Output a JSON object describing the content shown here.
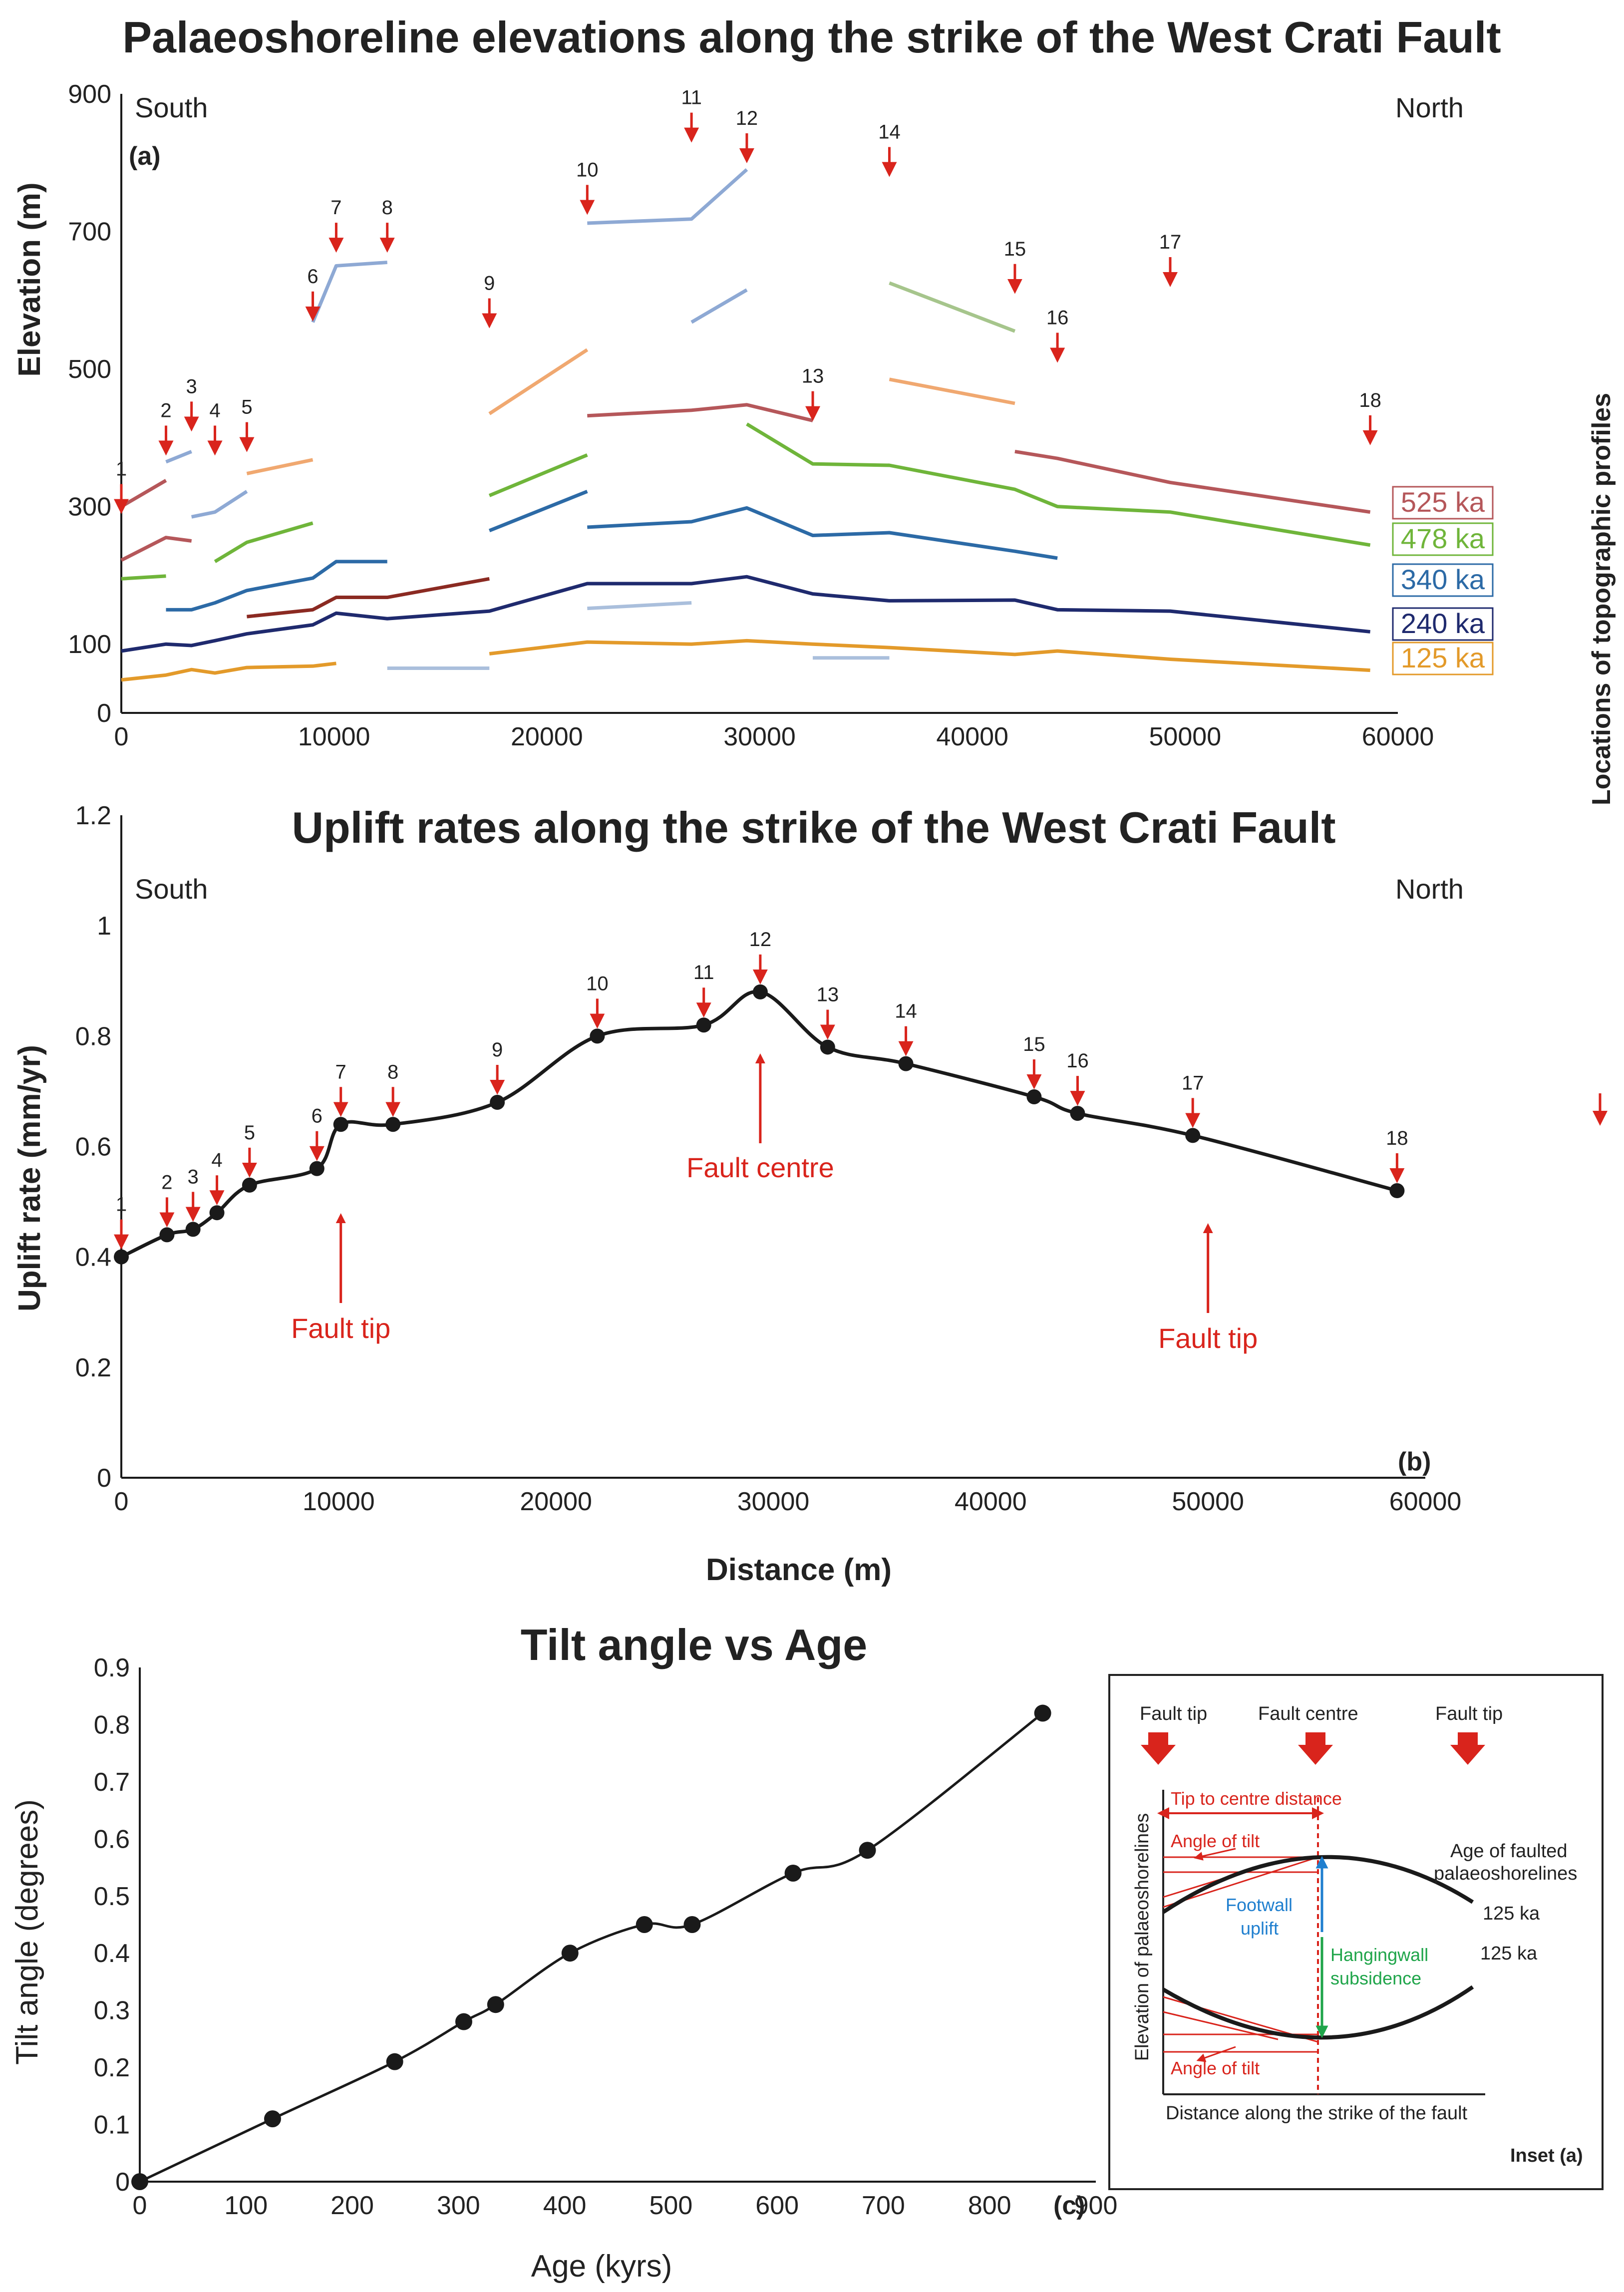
{
  "chart_data": [
    {
      "type": "line",
      "panel": "(a)",
      "title": "Palaeoshoreline elevations along the strike of the West Crati Fault",
      "xlabel": "",
      "ylabel": "Elevation (m)",
      "xlim": [
        0,
        60000
      ],
      "ylim": [
        0,
        900
      ],
      "xticks": [
        "0",
        "10000",
        "20000",
        "30000",
        "40000",
        "50000",
        "60000"
      ],
      "yticks": [
        "0",
        "100",
        "300",
        "500",
        "700",
        "900"
      ],
      "direction_labels": [
        "South",
        "North"
      ],
      "legend": [
        {
          "name": "525 ka",
          "color": "#b5575a"
        },
        {
          "name": "478 ka",
          "color": "#6fb53a"
        },
        {
          "name": "340 ka",
          "color": "#2c6aa6"
        },
        {
          "name": "240 ka",
          "color": "#1f2a6e"
        },
        {
          "name": "125 ka",
          "color": "#e39a2a"
        }
      ],
      "profile_markers": [
        {
          "label": "1",
          "x": 0,
          "y": 300
        },
        {
          "label": "2",
          "x": 2100,
          "y": 385
        },
        {
          "label": "3",
          "x": 3300,
          "y": 420
        },
        {
          "label": "4",
          "x": 4400,
          "y": 385
        },
        {
          "label": "5",
          "x": 5900,
          "y": 390
        },
        {
          "label": "6",
          "x": 9000,
          "y": 580
        },
        {
          "label": "7",
          "x": 10100,
          "y": 680
        },
        {
          "label": "8",
          "x": 12500,
          "y": 680
        },
        {
          "label": "9",
          "x": 17300,
          "y": 570
        },
        {
          "label": "10",
          "x": 21900,
          "y": 735
        },
        {
          "label": "11",
          "x": 26800,
          "y": 840
        },
        {
          "label": "12",
          "x": 29400,
          "y": 810
        },
        {
          "label": "13",
          "x": 32500,
          "y": 435
        },
        {
          "label": "14",
          "x": 36100,
          "y": 790
        },
        {
          "label": "15",
          "x": 42000,
          "y": 620
        },
        {
          "label": "16",
          "x": 44000,
          "y": 520
        },
        {
          "label": "17",
          "x": 49300,
          "y": 630
        },
        {
          "label": "18",
          "x": 58700,
          "y": 400
        }
      ],
      "series": [
        {
          "name": "125 ka",
          "color": "#e39a2a",
          "segments": [
            [
              [
                0,
                48
              ],
              [
                2100,
                55
              ],
              [
                3300,
                63
              ],
              [
                4400,
                58
              ],
              [
                5900,
                66
              ],
              [
                9000,
                68
              ],
              [
                10100,
                72
              ]
            ],
            [
              [
                17300,
                86
              ],
              [
                21900,
                103
              ],
              [
                26800,
                100
              ],
              [
                29400,
                105
              ],
              [
                32500,
                100
              ],
              [
                36100,
                95
              ],
              [
                42000,
                85
              ],
              [
                44000,
                90
              ],
              [
                49300,
                78
              ],
              [
                58700,
                62
              ]
            ]
          ]
        },
        {
          "name": "240 ka",
          "color": "#1f2a6e",
          "segments": [
            [
              [
                0,
                90
              ],
              [
                2100,
                100
              ],
              [
                3300,
                98
              ],
              [
                4400,
                105
              ],
              [
                5900,
                115
              ],
              [
                9000,
                128
              ],
              [
                10100,
                145
              ],
              [
                12500,
                137
              ],
              [
                17300,
                148
              ],
              [
                21900,
                188
              ],
              [
                26800,
                188
              ],
              [
                29400,
                198
              ],
              [
                32500,
                173
              ],
              [
                36100,
                163
              ],
              [
                42000,
                164
              ],
              [
                44000,
                150
              ],
              [
                49300,
                148
              ],
              [
                58700,
                118
              ]
            ]
          ]
        },
        {
          "name": "340 ka",
          "color": "#2c6aa6",
          "segments": [
            [
              [
                2100,
                150
              ],
              [
                3300,
                150
              ],
              [
                4400,
                160
              ],
              [
                5900,
                178
              ],
              [
                9000,
                196
              ],
              [
                10100,
                220
              ],
              [
                12500,
                220
              ]
            ],
            [
              [
                17300,
                265
              ],
              [
                21900,
                322
              ]
            ],
            [
              [
                21900,
                270
              ],
              [
                26800,
                278
              ],
              [
                29400,
                298
              ],
              [
                32500,
                258
              ],
              [
                36100,
                262
              ],
              [
                42000,
                235
              ],
              [
                44000,
                225
              ]
            ]
          ]
        },
        {
          "name": "478 ka",
          "color": "#6fb53a",
          "segments": [
            [
              [
                0,
                195
              ],
              [
                2100,
                199
              ]
            ],
            [
              [
                4400,
                220
              ],
              [
                5900,
                248
              ],
              [
                9000,
                276
              ]
            ],
            [
              [
                17300,
                316
              ],
              [
                21900,
                375
              ]
            ],
            [
              [
                29400,
                420
              ],
              [
                32500,
                362
              ],
              [
                36100,
                360
              ],
              [
                42000,
                325
              ],
              [
                44000,
                300
              ],
              [
                49300,
                292
              ],
              [
                58700,
                244
              ]
            ]
          ]
        },
        {
          "name": "525 ka",
          "color": "#b5575a",
          "segments": [
            [
              [
                0,
                222
              ],
              [
                2100,
                255
              ],
              [
                3300,
                250
              ]
            ],
            [
              [
                0,
                300
              ],
              [
                2100,
                338
              ]
            ],
            [
              [
                21900,
                432
              ],
              [
                26800,
                440
              ],
              [
                29400,
                448
              ],
              [
                32500,
                425
              ]
            ],
            [
              [
                42000,
                380
              ],
              [
                44000,
                370
              ],
              [
                49300,
                335
              ],
              [
                58700,
                292
              ]
            ]
          ]
        },
        {
          "name": "other-shorelines",
          "color": "#8ea9d4",
          "segments": [
            [
              [
                2100,
                365
              ],
              [
                3300,
                380
              ]
            ],
            [
              [
                3300,
                285
              ],
              [
                4400,
                292
              ],
              [
                5900,
                322
              ]
            ],
            [
              [
                9000,
                568
              ],
              [
                10100,
                650
              ],
              [
                12500,
                655
              ]
            ],
            [
              [
                21900,
                712
              ],
              [
                26800,
                718
              ],
              [
                29400,
                790
              ]
            ],
            [
              [
                26800,
                568
              ],
              [
                29400,
                615
              ]
            ]
          ]
        },
        {
          "name": "other-shorelines-warm",
          "color": "#f0a870",
          "segments": [
            [
              [
                5900,
                348
              ],
              [
                9000,
                368
              ]
            ],
            [
              [
                17300,
                435
              ],
              [
                21900,
                528
              ]
            ],
            [
              [
                36100,
                485
              ],
              [
                42000,
                450
              ]
            ]
          ]
        },
        {
          "name": "other-shorelines-dark",
          "color": "#8b2a22",
          "segments": [
            [
              [
                5900,
                140
              ],
              [
                9000,
                150
              ],
              [
                10100,
                168
              ],
              [
                12500,
                168
              ],
              [
                17300,
                195
              ]
            ]
          ]
        },
        {
          "name": "other-shorelines-pale",
          "color": "#aabfdc",
          "segments": [
            [
              [
                12500,
                65
              ],
              [
                17300,
                65
              ]
            ],
            [
              [
                21900,
                152
              ],
              [
                26800,
                160
              ]
            ],
            [
              [
                32500,
                80
              ],
              [
                36100,
                80
              ]
            ]
          ]
        },
        {
          "name": "other-shorelines-olive",
          "color": "#a6c58c",
          "segments": [
            [
              [
                36100,
                625
              ],
              [
                42000,
                555
              ]
            ]
          ]
        }
      ]
    },
    {
      "type": "line",
      "panel": "(b)",
      "title": "Uplift rates along the strike of the West Crati Fault",
      "xlabel": "Distance (m)",
      "ylabel": "Uplift rate (mm/yr)",
      "xlim": [
        0,
        60000
      ],
      "ylim": [
        0,
        1.2
      ],
      "xticks": [
        "0",
        "10000",
        "20000",
        "30000",
        "40000",
        "50000",
        "60000"
      ],
      "yticks": [
        "0",
        "0.2",
        "0.4",
        "0.6",
        "0.8",
        "1",
        "1.2"
      ],
      "direction_labels": [
        "South",
        "North"
      ],
      "annotations": [
        {
          "text": "Fault tip",
          "x": 10100
        },
        {
          "text": "Fault centre",
          "x": 29400
        },
        {
          "text": "Fault tip",
          "x": 50000
        }
      ],
      "series": [
        {
          "name": "Uplift rate",
          "color": "#1a1a1a",
          "x": [
            0,
            2100,
            3300,
            4400,
            5900,
            9000,
            10100,
            12500,
            17300,
            21900,
            26800,
            29400,
            32500,
            36100,
            42000,
            44000,
            49300,
            58700
          ],
          "labels": [
            "1",
            "2",
            "3",
            "4",
            "5",
            "6",
            "7",
            "8",
            "9",
            "10",
            "11",
            "12",
            "13",
            "14",
            "15",
            "16",
            "17",
            "18"
          ],
          "values": [
            0.4,
            0.44,
            0.45,
            0.48,
            0.53,
            0.56,
            0.64,
            0.64,
            0.68,
            0.8,
            0.82,
            0.88,
            0.78,
            0.75,
            0.69,
            0.66,
            0.62,
            0.52
          ]
        }
      ]
    },
    {
      "type": "line",
      "panel": "(c)",
      "title": "Tilt angle vs Age",
      "xlabel": "Age (kyrs)",
      "ylabel": "Tilt angle (degrees)",
      "xlim": [
        0,
        900
      ],
      "ylim": [
        0,
        0.9
      ],
      "xticks": [
        "0",
        "100",
        "200",
        "300",
        "400",
        "500",
        "600",
        "700",
        "800",
        "900"
      ],
      "yticks": [
        "0",
        "0.1",
        "0.2",
        "0.3",
        "0.4",
        "0.5",
        "0.6",
        "0.7",
        "0.8",
        "0.9"
      ],
      "series": [
        {
          "name": "Tilt angle",
          "color": "#1a1a1a",
          "x": [
            0,
            125,
            240,
            305,
            335,
            405,
            475,
            520,
            615,
            685,
            850
          ],
          "values": [
            0,
            0.11,
            0.21,
            0.28,
            0.31,
            0.4,
            0.45,
            0.45,
            0.54,
            0.58,
            0.82
          ]
        }
      ]
    }
  ],
  "side_label": "Locations of topographic profiles",
  "inset": {
    "arrow_labels": [
      "Fault tip",
      "Fault centre",
      "Fault tip"
    ],
    "tip_to_centre": "Tip to centre distance",
    "angle_of_tilt": "Angle of tilt",
    "age_label_1": "Age of faulted",
    "age_label_2": "palaeoshorelines",
    "age_upper": "125 ka",
    "age_lower": "125 ka",
    "footwall_1": "Footwall",
    "footwall_2": "uplift",
    "hangingwall_1": "Hangingwall",
    "hangingwall_2": "subsidence",
    "yaxis": "Elevation of palaeoshorelines",
    "xaxis": "Distance along the strike of the fault",
    "caption": "Inset (a)"
  },
  "colors": {
    "arrow": "#d9241c",
    "axis": "#1a1a1a",
    "footwall": "#1f7fcf",
    "hangingwall": "#1fa54a"
  }
}
